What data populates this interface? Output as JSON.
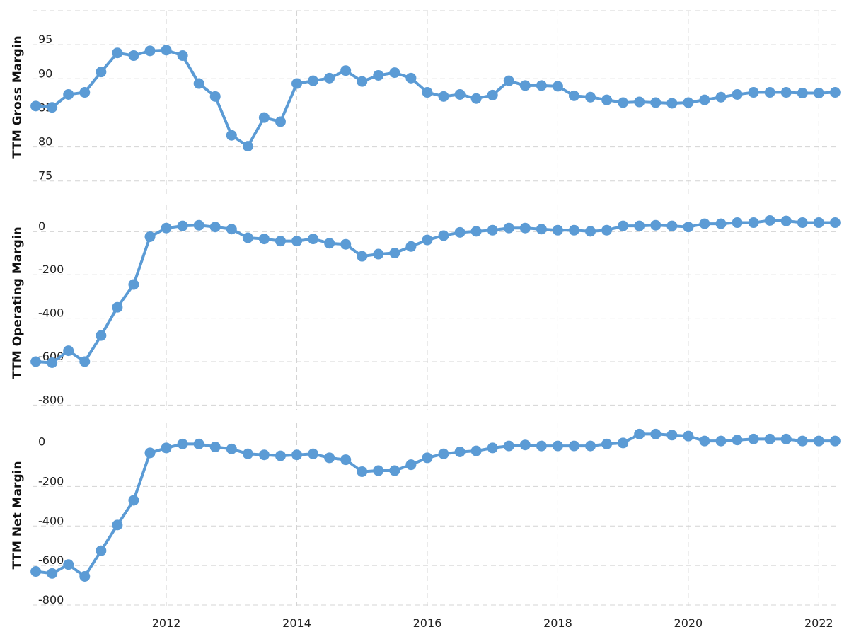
{
  "chart_data": [
    {
      "type": "line",
      "ylabel": "TTM Gross Margin",
      "yticks": [
        75,
        80,
        85,
        90,
        95
      ],
      "ylim": [
        73,
        100
      ],
      "xlim": [
        2009.95,
        2022.3
      ],
      "grid": true,
      "x": [
        2010.0,
        2010.25,
        2010.5,
        2010.75,
        2011.0,
        2011.25,
        2011.5,
        2011.75,
        2012.0,
        2012.25,
        2012.5,
        2012.75,
        2013.0,
        2013.25,
        2013.5,
        2013.75,
        2014.0,
        2014.25,
        2014.5,
        2014.75,
        2015.0,
        2015.25,
        2015.5,
        2015.75,
        2016.0,
        2016.25,
        2016.5,
        2016.75,
        2017.0,
        2017.25,
        2017.5,
        2017.75,
        2018.0,
        2018.25,
        2018.5,
        2018.75,
        2019.0,
        2019.25,
        2019.5,
        2019.75,
        2020.0,
        2020.25,
        2020.5,
        2020.75,
        2021.0,
        2021.25,
        2021.5,
        2021.75,
        2022.0,
        2022.25
      ],
      "series": [
        {
          "values": [
            86.0,
            85.8,
            87.7,
            88.0,
            91.0,
            93.8,
            93.4,
            94.1,
            94.2,
            93.4,
            89.3,
            87.4,
            81.7,
            80.1,
            84.3,
            83.7,
            89.3,
            89.7,
            90.1,
            91.2,
            89.6,
            90.5,
            90.9,
            90.1,
            88.0,
            87.4,
            87.7,
            87.1,
            87.6,
            89.7,
            89.0,
            89.0,
            88.9,
            87.5,
            87.3,
            86.9,
            86.5,
            86.6,
            86.5,
            86.4,
            86.5,
            86.9,
            87.3,
            87.7,
            88.0,
            88.0,
            88.0,
            87.9,
            87.9,
            88.0
          ]
        }
      ]
    },
    {
      "type": "line",
      "ylabel": "TTM Operating Margin",
      "yticks": [
        -800,
        -600,
        -400,
        -200,
        0
      ],
      "ylim": [
        -825,
        120
      ],
      "xlim": [
        2009.95,
        2022.3
      ],
      "grid": true,
      "x": [
        2010.0,
        2010.25,
        2010.5,
        2010.75,
        2011.0,
        2011.25,
        2011.5,
        2011.75,
        2012.0,
        2012.25,
        2012.5,
        2012.75,
        2013.0,
        2013.25,
        2013.5,
        2013.75,
        2014.0,
        2014.25,
        2014.5,
        2014.75,
        2015.0,
        2015.25,
        2015.5,
        2015.75,
        2016.0,
        2016.25,
        2016.5,
        2016.75,
        2017.0,
        2017.25,
        2017.5,
        2017.75,
        2018.0,
        2018.25,
        2018.5,
        2018.75,
        2019.0,
        2019.25,
        2019.5,
        2019.75,
        2020.0,
        2020.25,
        2020.5,
        2020.75,
        2021.0,
        2021.25,
        2021.5,
        2021.75,
        2022.0,
        2022.25
      ],
      "series": [
        {
          "values": [
            -600,
            -605,
            -550,
            -600,
            -480,
            -350,
            -245,
            -25,
            15,
            25,
            28,
            20,
            10,
            -30,
            -35,
            -45,
            -45,
            -35,
            -55,
            -60,
            -115,
            -105,
            -100,
            -70,
            -40,
            -20,
            -5,
            0,
            5,
            15,
            15,
            10,
            5,
            5,
            0,
            5,
            25,
            25,
            28,
            25,
            20,
            35,
            35,
            40,
            40,
            50,
            48,
            40,
            40,
            40
          ]
        }
      ]
    },
    {
      "type": "line",
      "ylabel": "TTM Net Margin",
      "yticks": [
        -800,
        -600,
        -400,
        -200,
        0
      ],
      "ylim": [
        -825,
        120
      ],
      "xlim": [
        2009.95,
        2022.3
      ],
      "grid": true,
      "x": [
        2010.0,
        2010.25,
        2010.5,
        2010.75,
        2011.0,
        2011.25,
        2011.5,
        2011.75,
        2012.0,
        2012.25,
        2012.5,
        2012.75,
        2013.0,
        2013.25,
        2013.5,
        2013.75,
        2014.0,
        2014.25,
        2014.5,
        2014.75,
        2015.0,
        2015.25,
        2015.5,
        2015.75,
        2016.0,
        2016.25,
        2016.5,
        2016.75,
        2017.0,
        2017.25,
        2017.5,
        2017.75,
        2018.0,
        2018.25,
        2018.5,
        2018.75,
        2019.0,
        2019.25,
        2019.5,
        2019.75,
        2020.0,
        2020.25,
        2020.5,
        2020.75,
        2021.0,
        2021.25,
        2021.5,
        2021.75,
        2022.0,
        2022.25
      ],
      "series": [
        {
          "values": [
            -630,
            -640,
            -595,
            -655,
            -525,
            -395,
            -270,
            -30,
            -5,
            15,
            15,
            0,
            -10,
            -35,
            -40,
            -45,
            -40,
            -35,
            -55,
            -65,
            -125,
            -120,
            -120,
            -90,
            -55,
            -35,
            -25,
            -20,
            -5,
            5,
            10,
            5,
            5,
            5,
            5,
            15,
            20,
            65,
            65,
            60,
            55,
            30,
            30,
            35,
            40,
            40,
            40,
            30,
            30,
            30
          ]
        }
      ]
    }
  ],
  "x_axis": {
    "tick_labels": [
      "2012",
      "2014",
      "2016",
      "2018",
      "2020",
      "2022"
    ],
    "tick_values": [
      2012,
      2014,
      2016,
      2018,
      2020,
      2022
    ]
  },
  "colors": {
    "series": "#5b9bd5",
    "grid": "#d4d4d4",
    "zero_line": "#9a9a9a",
    "text": "#222222"
  }
}
